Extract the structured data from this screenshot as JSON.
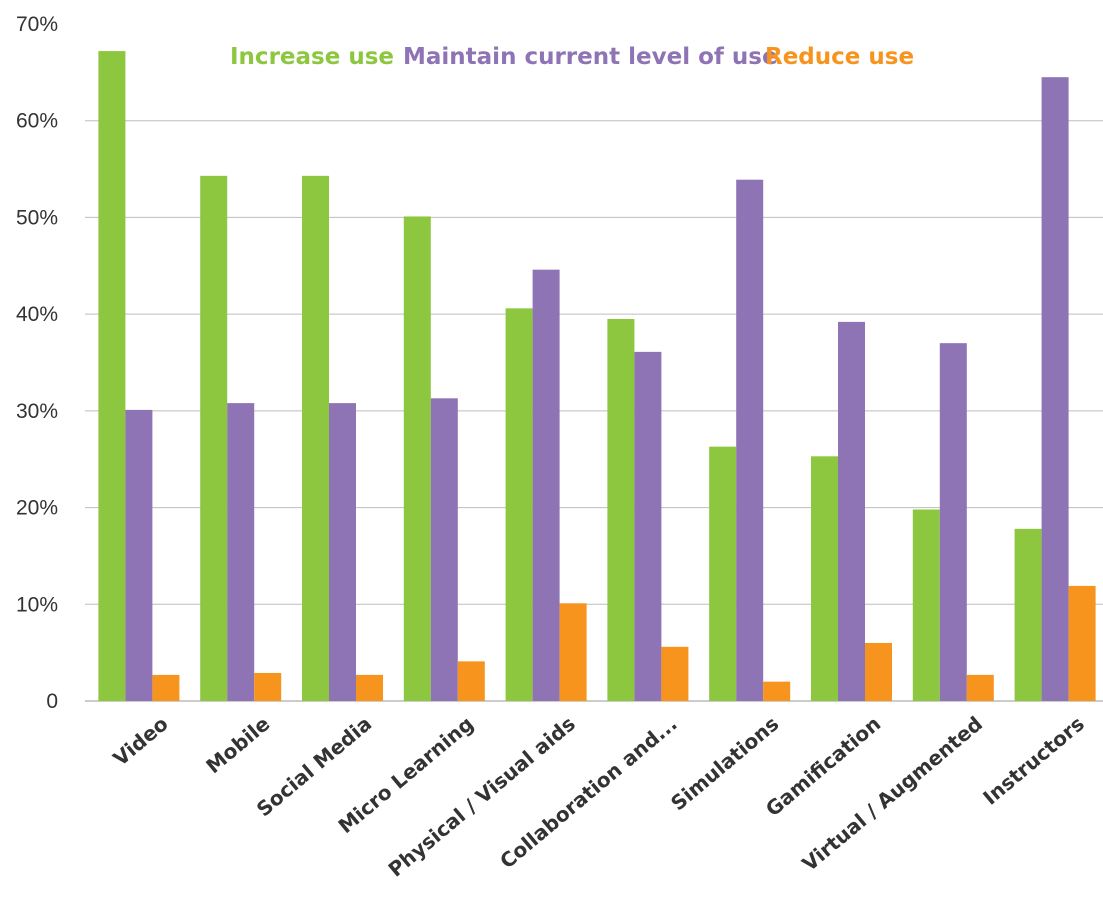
{
  "chart_data": {
    "type": "bar",
    "title": "",
    "xlabel": "",
    "ylabel": "",
    "ylim": [
      0,
      70
    ],
    "yticks": [
      0,
      10,
      20,
      30,
      40,
      50,
      60,
      70
    ],
    "ytick_labels": [
      "0",
      "10%",
      "20%",
      "30%",
      "40%",
      "50%",
      "60%",
      "70%"
    ],
    "grid": true,
    "legend_placement": "top-center",
    "categories": [
      "Video",
      "Mobile",
      "Social Media",
      "Micro Learning",
      "Physical / Visual aids",
      "Collaboration and...",
      "Simulations",
      "Gamification",
      "Virtual / Augmented",
      "Instructors"
    ],
    "series": [
      {
        "name": "Increase use",
        "color": "#8dc63f",
        "values": [
          67.2,
          54.3,
          54.3,
          50.1,
          40.6,
          39.5,
          26.3,
          25.3,
          19.8,
          17.8
        ]
      },
      {
        "name": "Maintain current level of use",
        "color": "#8e74b4",
        "values": [
          30.1,
          30.8,
          30.8,
          31.3,
          44.6,
          36.1,
          53.9,
          39.2,
          37.0,
          64.5
        ]
      },
      {
        "name": "Reduce use",
        "color": "#f7941d",
        "values": [
          2.7,
          2.9,
          2.7,
          4.1,
          10.1,
          5.6,
          2.0,
          6.0,
          2.7,
          11.9
        ]
      }
    ]
  }
}
